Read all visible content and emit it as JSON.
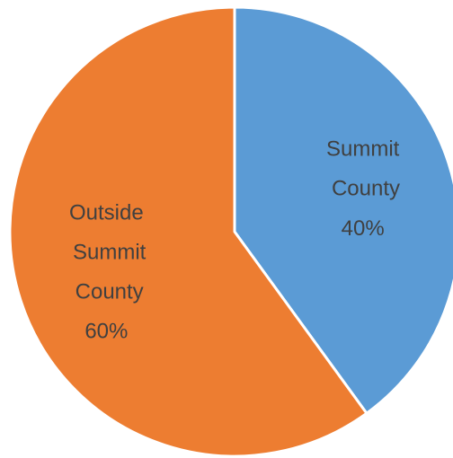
{
  "chart_data": {
    "type": "pie",
    "categories": [
      "Summit County",
      "Outside Summit County"
    ],
    "values": [
      40,
      60
    ],
    "value_labels": [
      "40%",
      "60%"
    ],
    "colors": [
      "#5b9bd5",
      "#ed7d31"
    ]
  }
}
